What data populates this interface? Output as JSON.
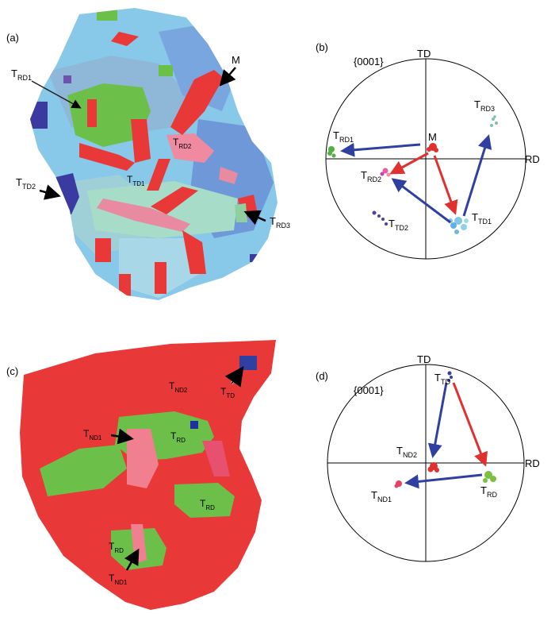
{
  "panel_a": {
    "tag": "(a)",
    "labels": {
      "m": "M",
      "trd1_main": "T",
      "trd1_sub": "RD1",
      "trd2_main": "T",
      "trd2_sub": "RD2",
      "ttd1_main": "T",
      "ttd1_sub": "TD1",
      "ttd2_main": "T",
      "ttd2_sub": "TD2",
      "trd3_main": "T",
      "trd3_sub": "RD3"
    }
  },
  "panel_b": {
    "tag": "(b)",
    "plane": "{0001}",
    "axis_td": "TD",
    "axis_rd": "RD",
    "labels": {
      "m": "M",
      "trd1_main": "T",
      "trd1_sub": "RD1",
      "trd2_main": "T",
      "trd2_sub": "RD2",
      "trd3_main": "T",
      "trd3_sub": "RD3",
      "ttd1_main": "T",
      "ttd1_sub": "TD1",
      "ttd2_main": "T",
      "ttd2_sub": "TD2"
    }
  },
  "panel_c": {
    "tag": "(c)",
    "labels": {
      "tnd2_main": "T",
      "tnd2_sub": "ND2",
      "ttd_main": "T",
      "ttd_sub": "TD",
      "tnd1_main": "T",
      "tnd1_sub": "ND1",
      "trd_a_main": "T",
      "trd_a_sub": "RD",
      "trd_b_main": "T",
      "trd_b_sub": "RD",
      "trd_c_main": "T",
      "trd_c_sub": "RD",
      "tnd1b_main": "T",
      "tnd1b_sub": "ND1"
    }
  },
  "panel_d": {
    "tag": "(d)",
    "plane": "{0001}",
    "axis_td": "TD",
    "axis_rd": "RD",
    "labels": {
      "ttd_main": "T",
      "ttd_sub": "TD",
      "tnd2_main": "T",
      "tnd2_sub": "ND2",
      "tnd1_main": "T",
      "tnd1_sub": "ND1",
      "trd_main": "T",
      "trd_sub": "RD"
    }
  },
  "colors": {
    "matrix_red": "#e83838",
    "twin_green": "#6cc04a",
    "twin_blue": "#3a3aa0",
    "map_cyan": "#88c8e8",
    "arrow_blue": "#3040a0",
    "arrow_red": "#e03030"
  }
}
